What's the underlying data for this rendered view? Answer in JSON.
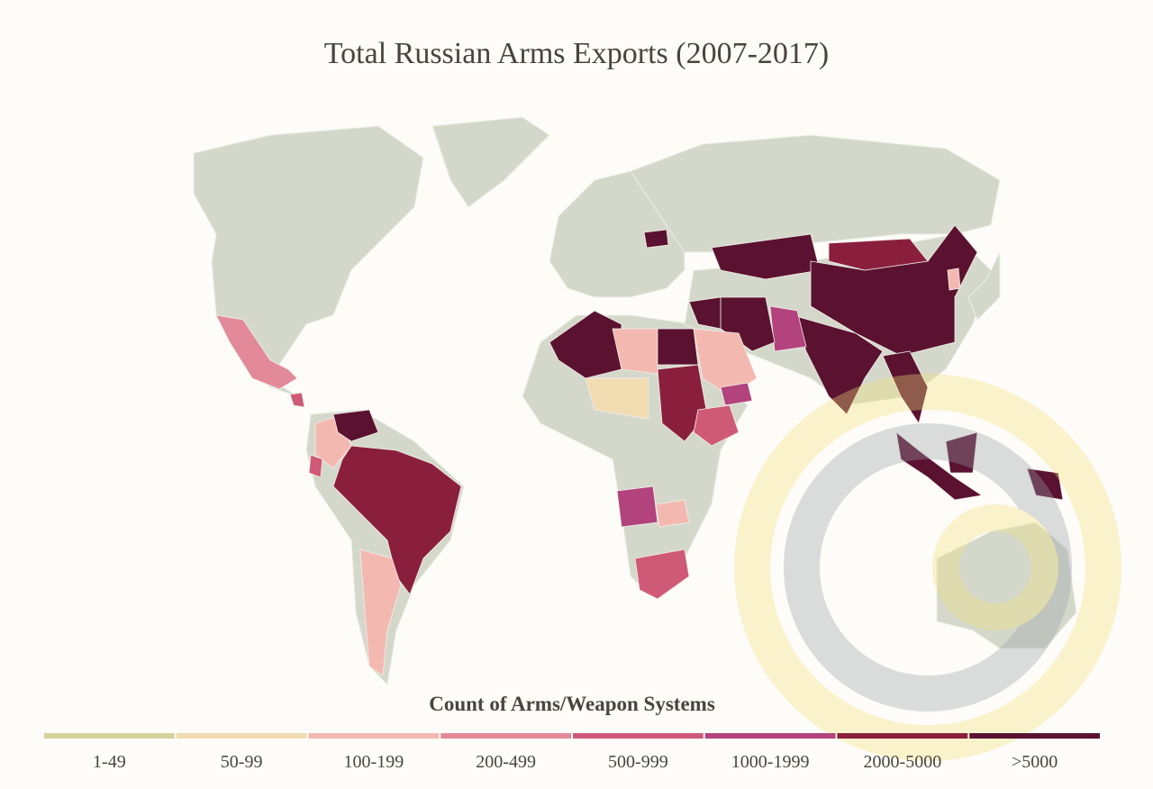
{
  "title": "Total Russian Arms Exports (2007-2017)",
  "legend": {
    "title": "Count of Arms/Weapon Systems",
    "items": [
      {
        "label": "1-49",
        "color": "#d5d29c"
      },
      {
        "label": "50-99",
        "color": "#f1dcb2"
      },
      {
        "label": "100-199",
        "color": "#f3b9b1"
      },
      {
        "label": "200-499",
        "color": "#e2899a"
      },
      {
        "label": "500-999",
        "color": "#cf5a78"
      },
      {
        "label": "1000-1999",
        "color": "#b2437c"
      },
      {
        "label": "2000-5000",
        "color": "#8a1f3d"
      },
      {
        "label": ">5000",
        "color": "#5a1230"
      }
    ]
  }
}
